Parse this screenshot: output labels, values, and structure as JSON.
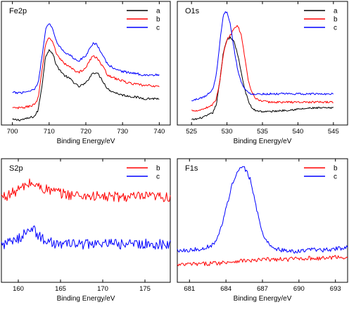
{
  "chart_data": [
    {
      "type": "line",
      "title": "Fe2p",
      "xlabel": "Binding Energy/eV",
      "xlim": [
        697,
        743
      ],
      "xticks": [
        700,
        710,
        720,
        730,
        740
      ],
      "y_ticks_shown": false,
      "legend_position": "top-right",
      "colors": {
        "a": "#000000",
        "b": "#ff0000",
        "c": "#0000ff"
      },
      "x": [
        700,
        702,
        704,
        706,
        707,
        708,
        709,
        710,
        711,
        712,
        714,
        716,
        718,
        720,
        721,
        722,
        723,
        724,
        725,
        726,
        728,
        730,
        732,
        734,
        736,
        738,
        740
      ],
      "series": [
        {
          "name": "a",
          "values": [
            0.02,
            0.02,
            0.03,
            0.05,
            0.1,
            0.3,
            0.55,
            0.62,
            0.58,
            0.48,
            0.4,
            0.36,
            0.3,
            0.33,
            0.38,
            0.42,
            0.42,
            0.38,
            0.33,
            0.28,
            0.25,
            0.23,
            0.22,
            0.21,
            0.2,
            0.2,
            0.2
          ]
        },
        {
          "name": "b",
          "values": [
            0.12,
            0.12,
            0.13,
            0.15,
            0.2,
            0.42,
            0.66,
            0.72,
            0.68,
            0.58,
            0.5,
            0.46,
            0.42,
            0.46,
            0.52,
            0.56,
            0.55,
            0.5,
            0.45,
            0.4,
            0.37,
            0.35,
            0.33,
            0.32,
            0.31,
            0.31,
            0.3
          ]
        },
        {
          "name": "c",
          "values": [
            0.25,
            0.25,
            0.26,
            0.28,
            0.33,
            0.55,
            0.78,
            0.84,
            0.79,
            0.68,
            0.6,
            0.56,
            0.52,
            0.56,
            0.63,
            0.67,
            0.66,
            0.6,
            0.54,
            0.49,
            0.45,
            0.43,
            0.42,
            0.41,
            0.4,
            0.4,
            0.4
          ]
        }
      ]
    },
    {
      "type": "line",
      "title": "O1s",
      "xlabel": "Binding Energy/eV",
      "xlim": [
        523,
        547
      ],
      "xticks": [
        525,
        530,
        535,
        540,
        545
      ],
      "y_ticks_shown": false,
      "legend_position": "top-right",
      "colors": {
        "a": "#000000",
        "b": "#ff0000",
        "c": "#0000ff"
      },
      "x": [
        525,
        526,
        527,
        528,
        528.5,
        529,
        529.5,
        530,
        530.5,
        531,
        531.5,
        532,
        532.5,
        533,
        533.5,
        534,
        535,
        536,
        538,
        540,
        542,
        545
      ],
      "series": [
        {
          "name": "a",
          "values": [
            0.02,
            0.03,
            0.05,
            0.08,
            0.15,
            0.35,
            0.6,
            0.7,
            0.72,
            0.68,
            0.58,
            0.42,
            0.28,
            0.18,
            0.12,
            0.1,
            0.09,
            0.09,
            0.1,
            0.11,
            0.12,
            0.12
          ]
        },
        {
          "name": "b",
          "values": [
            0.1,
            0.1,
            0.12,
            0.15,
            0.2,
            0.35,
            0.58,
            0.7,
            0.74,
            0.8,
            0.82,
            0.74,
            0.55,
            0.35,
            0.25,
            0.2,
            0.18,
            0.17,
            0.17,
            0.17,
            0.17,
            0.17
          ]
        },
        {
          "name": "c",
          "values": [
            0.18,
            0.2,
            0.22,
            0.28,
            0.4,
            0.68,
            0.92,
            0.94,
            0.82,
            0.62,
            0.45,
            0.34,
            0.28,
            0.25,
            0.24,
            0.24,
            0.24,
            0.24,
            0.24,
            0.24,
            0.24,
            0.24
          ]
        }
      ]
    },
    {
      "type": "line",
      "title": "S2p",
      "xlabel": "Binding Energy/eV",
      "xlim": [
        158,
        178
      ],
      "xticks": [
        160,
        165,
        170,
        175
      ],
      "y_ticks_shown": false,
      "legend_position": "top-right",
      "colors": {
        "b": "#ff0000",
        "c": "#0000ff"
      },
      "x": [
        158,
        159,
        160,
        161,
        161.5,
        162,
        163,
        164,
        165,
        166,
        168,
        170,
        172,
        174,
        176,
        178
      ],
      "series": [
        {
          "name": "b",
          "values": [
            0.7,
            0.72,
            0.76,
            0.8,
            0.82,
            0.8,
            0.77,
            0.75,
            0.73,
            0.72,
            0.71,
            0.7,
            0.7,
            0.7,
            0.7,
            0.7
          ]
        },
        {
          "name": "c",
          "values": [
            0.3,
            0.31,
            0.34,
            0.42,
            0.45,
            0.4,
            0.34,
            0.31,
            0.3,
            0.3,
            0.3,
            0.3,
            0.3,
            0.3,
            0.3,
            0.3
          ]
        }
      ]
    },
    {
      "type": "line",
      "title": "F1s",
      "xlabel": "Binding Energy/eV",
      "xlim": [
        680,
        694
      ],
      "xticks": [
        681,
        684,
        687,
        690,
        693
      ],
      "y_ticks_shown": false,
      "legend_position": "top-right",
      "colors": {
        "b": "#ff0000",
        "c": "#0000ff"
      },
      "x": [
        680,
        681,
        682,
        683,
        683.5,
        684,
        684.5,
        685,
        685.5,
        686,
        686.5,
        687,
        687.5,
        688,
        689,
        690,
        691,
        692,
        693,
        694
      ],
      "series": [
        {
          "name": "b",
          "values": [
            0.12,
            0.13,
            0.13,
            0.14,
            0.14,
            0.15,
            0.15,
            0.16,
            0.16,
            0.16,
            0.16,
            0.17,
            0.17,
            0.17,
            0.17,
            0.18,
            0.18,
            0.18,
            0.19,
            0.19
          ]
        },
        {
          "name": "c",
          "values": [
            0.25,
            0.25,
            0.26,
            0.3,
            0.4,
            0.6,
            0.8,
            0.92,
            0.95,
            0.85,
            0.6,
            0.4,
            0.3,
            0.26,
            0.24,
            0.24,
            0.25,
            0.25,
            0.26,
            0.27
          ]
        }
      ]
    }
  ]
}
